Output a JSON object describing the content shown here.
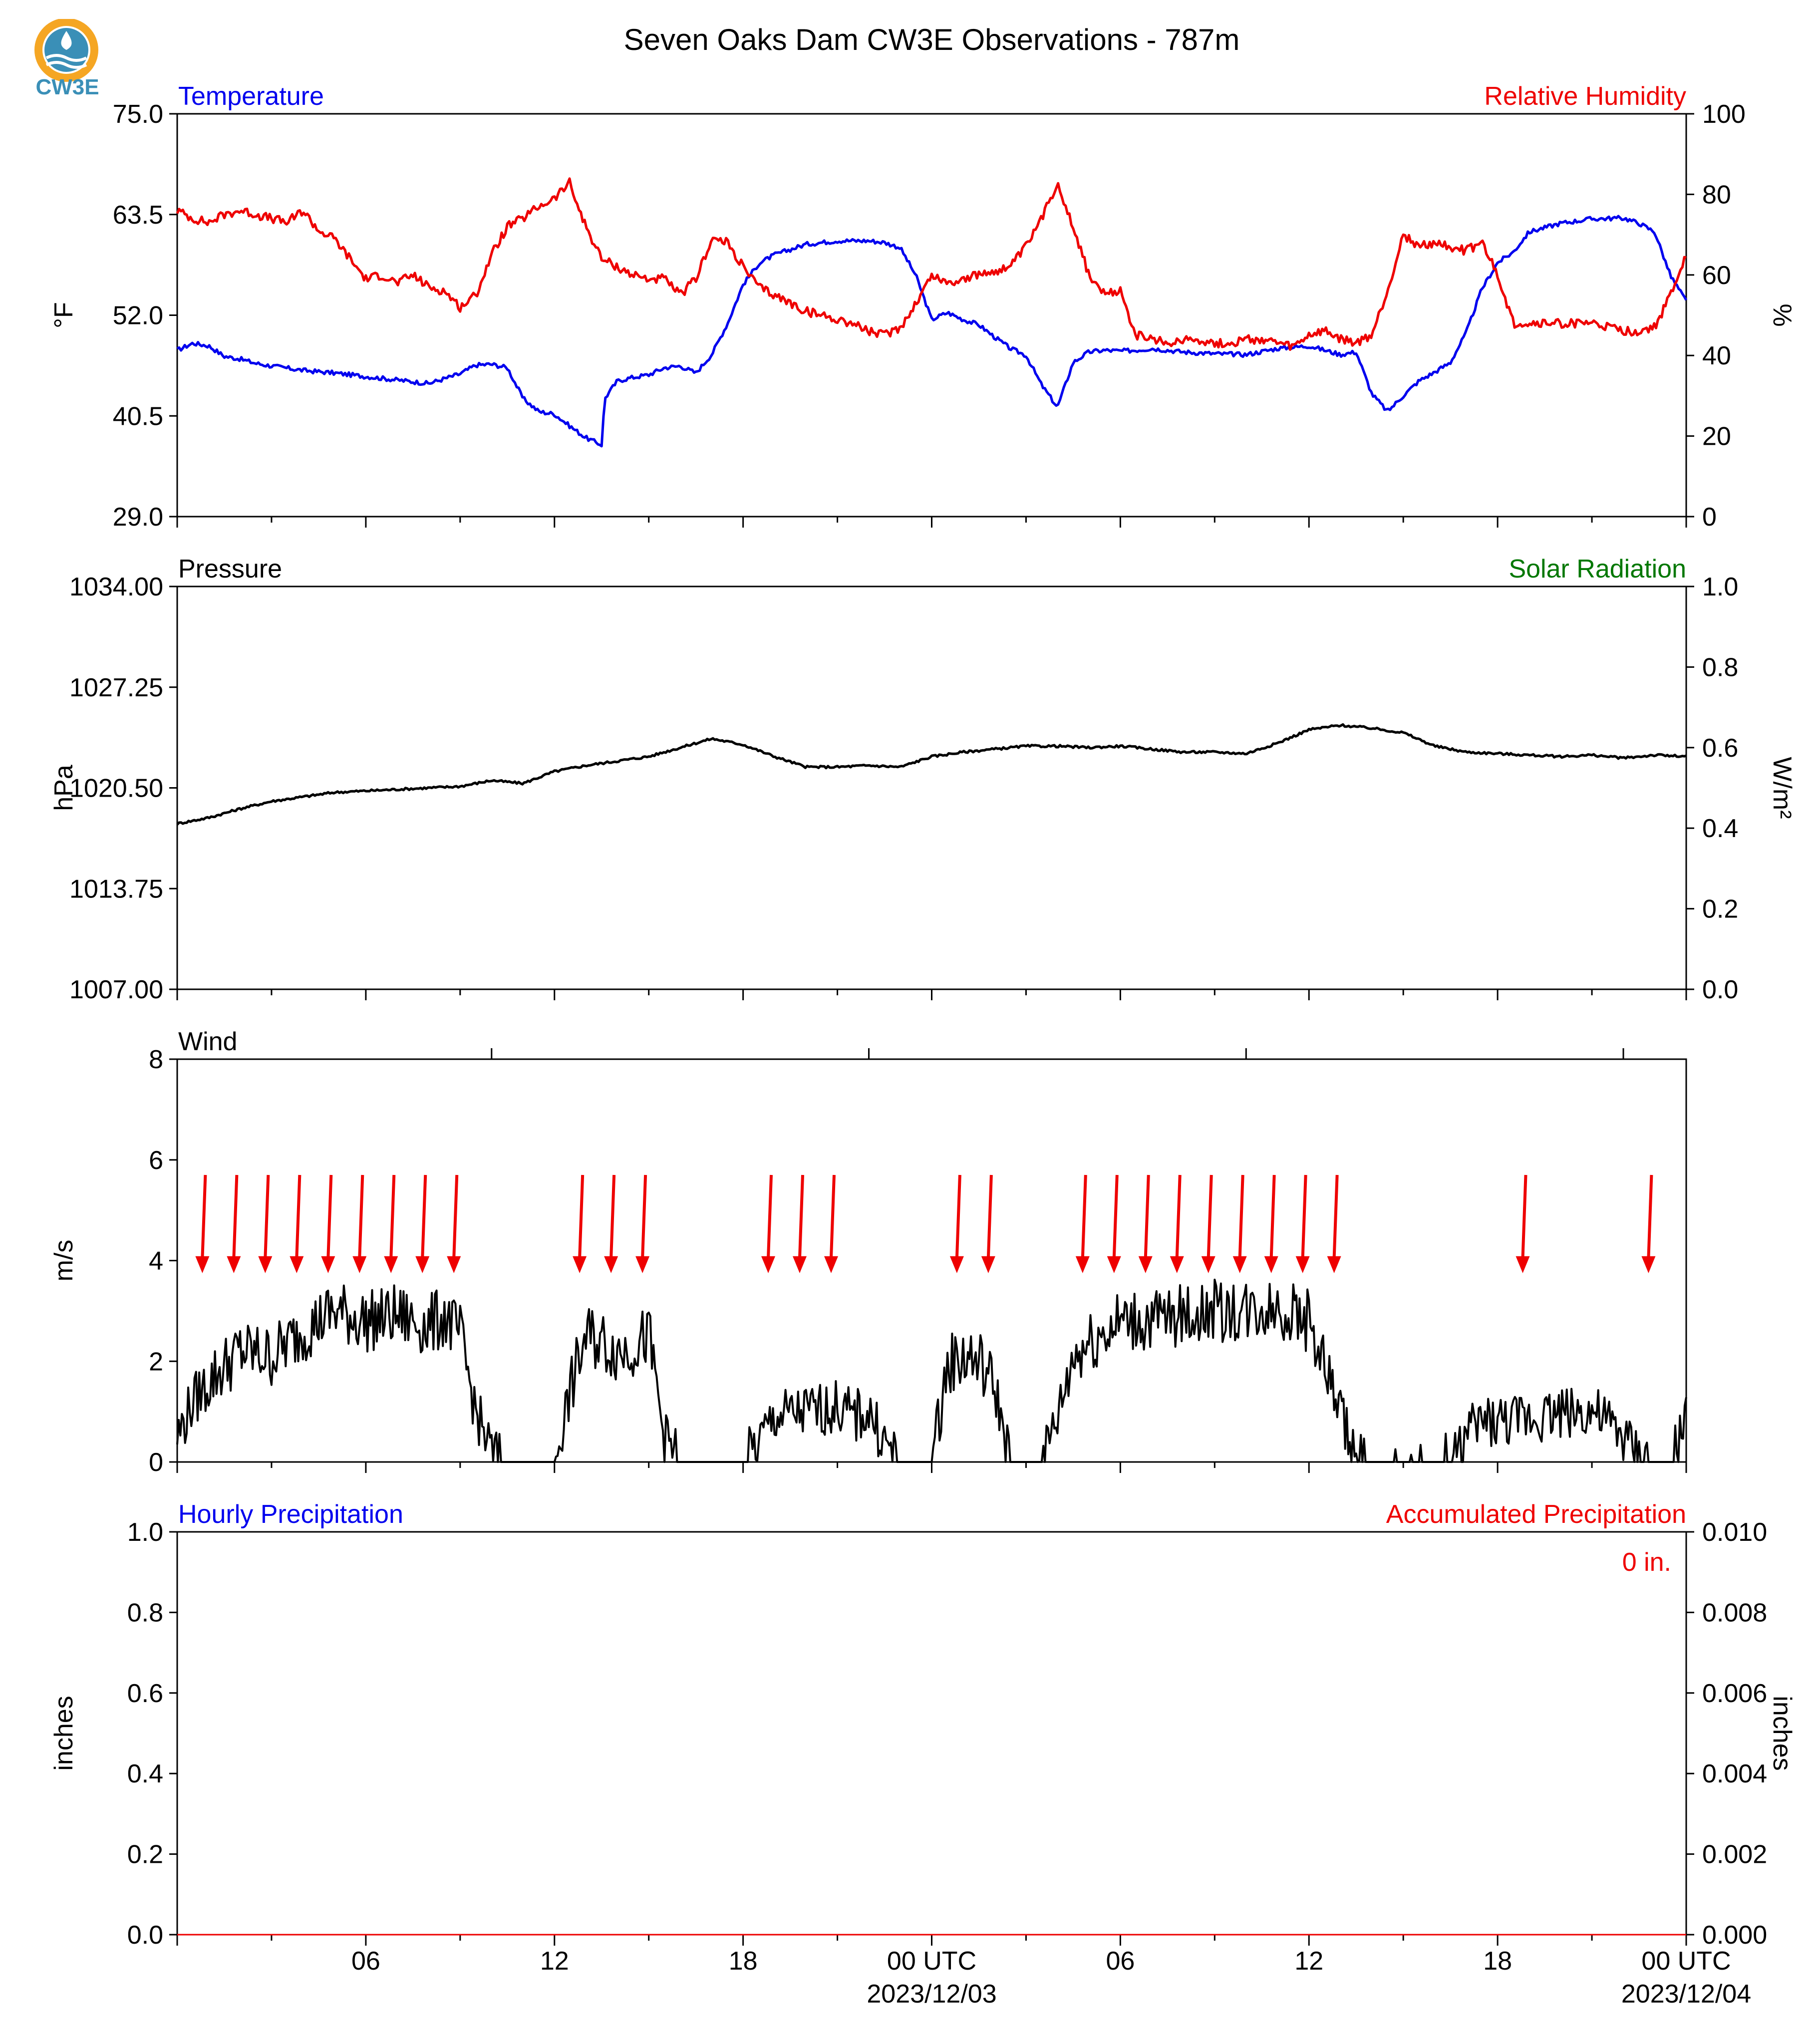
{
  "figure_title": "Seven Oaks Dam CW3E Observations - 787m",
  "logo_text": "CW3E",
  "colors": {
    "blue": "#0000ee",
    "red": "#ee0000",
    "green": "#007700",
    "black": "#000000",
    "logo_orange": "#f5a623",
    "logo_blue": "#3a8fb7"
  },
  "x_axis": {
    "start": "2023-12-02 01:00 UTC",
    "end": "2023-12-04 01:00 UTC",
    "major_ticks": [
      {
        "hour": 6,
        "label": "06"
      },
      {
        "hour": 12,
        "label": "12"
      },
      {
        "hour": 18,
        "label": "18"
      },
      {
        "hour": 24,
        "label": "00 UTC",
        "date": "2023/12/03"
      },
      {
        "hour": 30,
        "label": "06"
      },
      {
        "hour": 36,
        "label": "12"
      },
      {
        "hour": 42,
        "label": "18"
      },
      {
        "hour": 48,
        "label": "00 UTC",
        "date": "2023/12/04"
      }
    ]
  },
  "chart_data": [
    {
      "type": "line",
      "left_title": "Temperature",
      "right_title": "Relative Humidity",
      "ylabel": "°F",
      "ylabel2": "%",
      "ylim": [
        29.0,
        75.0
      ],
      "ylim2": [
        0,
        100
      ],
      "yticks": [
        "29.0",
        "40.5",
        "52.0",
        "63.5",
        "75.0"
      ],
      "yticks2": [
        "0",
        "20",
        "40",
        "60",
        "80",
        "100"
      ],
      "series": [
        {
          "name": "Temperature",
          "axis": "left",
          "color": "#0000ee",
          "x": [
            0,
            0.5,
            1,
            1.5,
            2,
            2.5,
            3,
            4,
            5,
            6,
            7,
            8,
            9,
            9.5,
            10,
            10.5,
            11,
            11.5,
            12,
            12.5,
            13,
            13.5,
            13.6,
            14,
            14.5,
            15,
            15.5,
            16,
            16.5,
            17,
            17.5,
            18,
            18.5,
            19,
            19.5,
            20,
            21,
            22,
            22.5,
            23,
            23.5,
            24,
            24.5,
            25,
            25.5,
            26,
            26.5,
            27,
            27.5,
            28,
            28.5,
            29,
            29.5,
            30,
            30.5,
            31,
            32,
            33,
            34,
            35,
            36,
            37,
            37.5,
            38,
            38.5,
            39,
            39.5,
            40,
            40.5,
            41,
            41.5,
            42,
            42.5,
            43,
            44,
            45,
            46,
            46.5,
            47,
            47.5,
            48
          ],
          "y": [
            48,
            48.8,
            48.5,
            47.3,
            47,
            46.5,
            46.2,
            45.7,
            45.4,
            45,
            44.6,
            44.2,
            45.3,
            46.3,
            46.4,
            46,
            42.5,
            41,
            40.7,
            39.3,
            38,
            37.2,
            42.5,
            44.5,
            44.9,
            45.2,
            46,
            46.2,
            45.4,
            47.5,
            51,
            55.5,
            57.9,
            58.9,
            59.5,
            60.1,
            60.5,
            60.5,
            60.3,
            59.7,
            56.5,
            51.5,
            52.3,
            51.5,
            50.9,
            49.5,
            48.2,
            47.4,
            44,
            41.5,
            46.6,
            47.8,
            48,
            47.9,
            48,
            48.2,
            47.8,
            47.6,
            47.5,
            48.2,
            48.5,
            47.5,
            47.8,
            43,
            41,
            42.8,
            44.5,
            45.5,
            46.6,
            50,
            55,
            58,
            59.2,
            61.5,
            62.5,
            63,
            63.1,
            62.5,
            61.5,
            56.5,
            53.6
          ]
        },
        {
          "name": "Relative Humidity",
          "axis": "right",
          "color": "#ee0000",
          "x": [
            0,
            0.5,
            1,
            1.5,
            2,
            2.5,
            3,
            3.5,
            4,
            4.5,
            5,
            5.5,
            6,
            6.5,
            7,
            7.5,
            8,
            8.5,
            9,
            9.5,
            10,
            10.5,
            11,
            11.5,
            12,
            12.5,
            12.6,
            13,
            13.5,
            14,
            14.5,
            15,
            15.5,
            16,
            16.5,
            17,
            17.5,
            18,
            18.5,
            19,
            19.5,
            20,
            20.5,
            21,
            21.5,
            22,
            22.5,
            23,
            23.5,
            24,
            24.5,
            25,
            25.5,
            26,
            26.5,
            27,
            27.5,
            28,
            28.5,
            29,
            29.5,
            30,
            30.5,
            31,
            31.5,
            32,
            32.5,
            33,
            33.5,
            34,
            34.5,
            35,
            35.5,
            36,
            36.5,
            37,
            37.5,
            38,
            38.5,
            39,
            39.5,
            40,
            40.5,
            41,
            41.5,
            42,
            42.5,
            43,
            43.5,
            44,
            44.5,
            45,
            45.5,
            46,
            46.5,
            47,
            47.5,
            48
          ],
          "y": [
            76,
            74,
            73,
            75,
            76,
            75,
            74,
            73,
            76,
            71,
            69,
            64,
            59,
            60,
            58,
            60,
            57,
            56,
            52,
            55,
            65,
            72,
            74,
            77,
            79,
            83,
            80,
            72,
            64,
            62,
            60,
            59,
            59,
            55,
            59,
            69,
            68,
            62,
            57,
            55,
            53,
            51,
            50,
            49,
            48,
            46,
            45,
            47,
            53,
            60,
            58,
            59,
            60,
            61,
            62,
            67,
            74,
            83,
            72,
            60,
            55,
            56,
            45,
            44,
            43,
            44,
            44,
            43,
            43,
            44,
            44,
            43,
            42,
            45,
            46,
            44,
            43,
            45,
            56,
            70,
            67,
            68,
            67,
            66,
            68,
            60,
            48,
            48,
            48,
            48,
            48,
            48,
            47,
            46,
            46,
            47,
            55,
            65
          ]
        }
      ]
    },
    {
      "type": "line",
      "left_title": "Pressure",
      "right_title": "Solar Radiation",
      "ylabel": "hPa",
      "ylabel2": "W/m²",
      "ylim": [
        1007.0,
        1034.0
      ],
      "ylim2": [
        0,
        1
      ],
      "yticks": [
        "1007.00",
        "1013.75",
        "1020.50",
        "1027.25",
        "1034.00"
      ],
      "yticks2": [
        "0.0",
        "0.2",
        "0.4",
        "0.6",
        "0.8",
        "1.0"
      ],
      "series": [
        {
          "name": "Pressure",
          "axis": "left",
          "color": "#000000",
          "x": [
            0,
            1,
            2,
            3,
            4,
            5,
            6,
            7,
            8,
            9,
            10,
            11,
            12,
            13,
            14,
            15,
            16,
            17,
            18,
            19,
            20,
            21,
            22,
            23,
            24,
            25,
            26,
            27,
            28,
            29,
            30,
            31,
            32,
            33,
            34,
            35,
            36,
            37,
            38,
            39,
            40,
            41,
            42,
            43,
            44,
            45,
            46,
            47,
            48
          ],
          "y": [
            1018.1,
            1018.5,
            1019.1,
            1019.6,
            1019.9,
            1020.2,
            1020.3,
            1020.4,
            1020.5,
            1020.6,
            1021.0,
            1020.8,
            1021.6,
            1022.0,
            1022.3,
            1022.6,
            1023.2,
            1023.8,
            1023.4,
            1022.6,
            1021.9,
            1021.9,
            1022.0,
            1021.9,
            1022.6,
            1022.9,
            1023.1,
            1023.3,
            1023.3,
            1023.2,
            1023.3,
            1023.1,
            1022.9,
            1022.9,
            1022.8,
            1023.5,
            1024.4,
            1024.7,
            1024.5,
            1024.2,
            1023.3,
            1022.9,
            1022.8,
            1022.7,
            1022.6,
            1022.7,
            1022.5,
            1022.7,
            1022.6
          ]
        }
      ]
    },
    {
      "type": "line",
      "left_title": "Wind",
      "ylabel": "m/s",
      "ylim": [
        0,
        8
      ],
      "yticks": [
        "0",
        "2",
        "4",
        "6",
        "8"
      ],
      "series": [
        {
          "name": "Wind speed",
          "color": "#000000",
          "noise": 0.45,
          "x": [
            0,
            0.5,
            1,
            2,
            3,
            4,
            5,
            6,
            7,
            8,
            8.5,
            9,
            9.5,
            10,
            10.5,
            11,
            11.5,
            12,
            12.5,
            13,
            13.5,
            14,
            14.5,
            15,
            15.5,
            16,
            16.5,
            17,
            17.5,
            18,
            18.5,
            19,
            20,
            21,
            21.5,
            22,
            22.5,
            23,
            23.5,
            24,
            24.5,
            25,
            25.5,
            26,
            26.5,
            27,
            27.5,
            28,
            28.5,
            29,
            30,
            31,
            32,
            33,
            34,
            35,
            36,
            37,
            37.5,
            38,
            38.5,
            39,
            39.5,
            40,
            40.5,
            41,
            41.5,
            42,
            42.5,
            43,
            44,
            45,
            46,
            46.5,
            47,
            47.5,
            48
          ],
          "y": [
            0.5,
            1.2,
            1.6,
            2.2,
            2.1,
            2.6,
            3,
            2.8,
            2.9,
            2.7,
            2.9,
            2.5,
            1,
            0.2,
            0,
            0,
            0,
            0,
            1.4,
            2.5,
            2.4,
            2.2,
            2.3,
            2.5,
            0.5,
            0,
            0,
            0,
            0,
            0,
            0.4,
            0.9,
            1.0,
            1.1,
            0.9,
            1.0,
            0.4,
            0,
            0,
            0,
            1.9,
            2.1,
            2,
            1.5,
            0,
            0,
            0,
            0.9,
            2.1,
            2.4,
            2.8,
            2.8,
            2.9,
            3.0,
            3.0,
            3.1,
            2.8,
            1.0,
            0.1,
            0,
            0,
            0,
            0,
            0,
            0,
            0.5,
            0.8,
            0.8,
            0.8,
            0.9,
            1.0,
            1.0,
            0.5,
            0.1,
            0,
            0,
            0.8
          ]
        },
        {
          "name": "Wind direction",
          "type": "arrows",
          "color": "#ee0000",
          "x": [
            0.8,
            1.8,
            2.8,
            3.8,
            4.8,
            5.8,
            6.8,
            7.8,
            8.8,
            12.8,
            13.8,
            14.8,
            18.8,
            19.8,
            20.8,
            24.8,
            25.8,
            28.8,
            29.8,
            30.8,
            31.8,
            32.8,
            33.8,
            34.8,
            35.8,
            36.8,
            42.8,
            46.8
          ]
        }
      ]
    },
    {
      "type": "line",
      "left_title": "Hourly Precipitation",
      "right_title": "Accumulated Precipitation",
      "ylabel": "inches",
      "ylabel2": "inches",
      "ylim": [
        0,
        1.0
      ],
      "ylim2": [
        0,
        0.01
      ],
      "yticks": [
        "0.0",
        "0.2",
        "0.4",
        "0.6",
        "0.8",
        "1.0"
      ],
      "yticks2": [
        "0.000",
        "0.002",
        "0.004",
        "0.006",
        "0.008",
        "0.010"
      ],
      "annotation": "0 in.",
      "series": [
        {
          "name": "Hourly Precipitation",
          "axis": "left",
          "color": "#0000ee",
          "values": [
            0,
            0
          ]
        },
        {
          "name": "Accumulated Precipitation",
          "axis": "right",
          "color": "#ee0000",
          "values": [
            0,
            0
          ]
        }
      ]
    }
  ]
}
